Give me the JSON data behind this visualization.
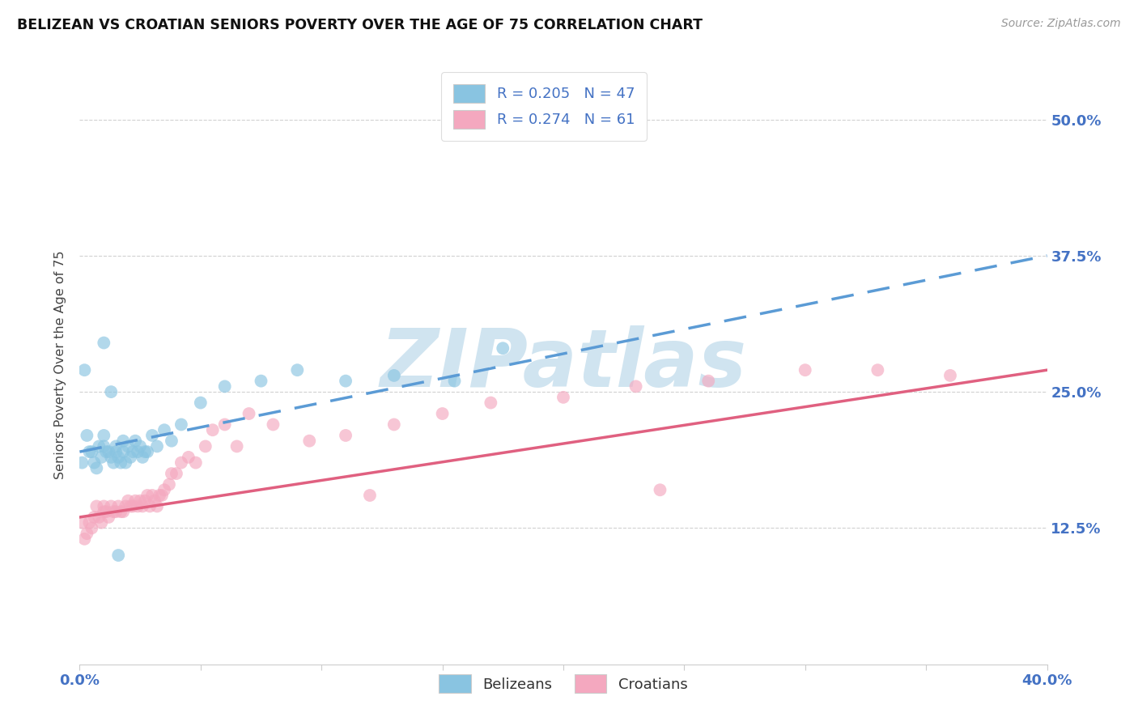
{
  "title": "BELIZEAN VS CROATIAN SENIORS POVERTY OVER THE AGE OF 75 CORRELATION CHART",
  "source": "Source: ZipAtlas.com",
  "ylabel": "Seniors Poverty Over the Age of 75",
  "legend_belizeans": "Belizeans",
  "legend_croatians": "Croatians",
  "R_belizean": 0.205,
  "N_belizean": 47,
  "R_croatian": 0.274,
  "N_croatian": 61,
  "blue_scatter_color": "#89c4e1",
  "pink_scatter_color": "#f4a8bf",
  "blue_line_color": "#5b9bd5",
  "pink_line_color": "#e06080",
  "watermark_color": "#d0e4f0",
  "title_color": "#111111",
  "axis_label_color": "#4472c4",
  "legend_text_color": "#4472c4",
  "background_color": "#ffffff",
  "grid_color": "#cccccc",
  "xmin": 0.0,
  "xmax": 0.4,
  "ymin": 0.0,
  "ymax": 0.55,
  "ytick_vals": [
    0.125,
    0.25,
    0.375,
    0.5
  ],
  "xtick_vals": [
    0.0,
    0.05,
    0.1,
    0.15,
    0.2,
    0.25,
    0.3,
    0.35,
    0.4
  ],
  "belizean_x": [
    0.001,
    0.002,
    0.003,
    0.004,
    0.005,
    0.006,
    0.007,
    0.008,
    0.009,
    0.01,
    0.01,
    0.011,
    0.012,
    0.013,
    0.014,
    0.015,
    0.015,
    0.016,
    0.017,
    0.018,
    0.018,
    0.019,
    0.02,
    0.021,
    0.022,
    0.023,
    0.024,
    0.025,
    0.026,
    0.027,
    0.028,
    0.03,
    0.032,
    0.035,
    0.038,
    0.042,
    0.05,
    0.06,
    0.075,
    0.09,
    0.11,
    0.13,
    0.155,
    0.175,
    0.01,
    0.013,
    0.016
  ],
  "belizean_y": [
    0.185,
    0.27,
    0.21,
    0.195,
    0.195,
    0.185,
    0.18,
    0.2,
    0.19,
    0.21,
    0.2,
    0.195,
    0.195,
    0.19,
    0.185,
    0.195,
    0.2,
    0.19,
    0.185,
    0.195,
    0.205,
    0.185,
    0.2,
    0.19,
    0.195,
    0.205,
    0.195,
    0.2,
    0.19,
    0.195,
    0.195,
    0.21,
    0.2,
    0.215,
    0.205,
    0.22,
    0.24,
    0.255,
    0.26,
    0.27,
    0.26,
    0.265,
    0.26,
    0.29,
    0.295,
    0.25,
    0.1
  ],
  "croatian_x": [
    0.001,
    0.002,
    0.003,
    0.004,
    0.005,
    0.006,
    0.007,
    0.008,
    0.009,
    0.01,
    0.01,
    0.011,
    0.012,
    0.013,
    0.014,
    0.015,
    0.016,
    0.017,
    0.018,
    0.019,
    0.02,
    0.021,
    0.022,
    0.023,
    0.024,
    0.025,
    0.026,
    0.027,
    0.028,
    0.029,
    0.03,
    0.031,
    0.032,
    0.033,
    0.034,
    0.035,
    0.037,
    0.038,
    0.04,
    0.042,
    0.045,
    0.048,
    0.052,
    0.055,
    0.06,
    0.065,
    0.07,
    0.08,
    0.095,
    0.11,
    0.13,
    0.15,
    0.17,
    0.2,
    0.23,
    0.26,
    0.3,
    0.33,
    0.36,
    0.12,
    0.24
  ],
  "croatian_y": [
    0.13,
    0.115,
    0.12,
    0.13,
    0.125,
    0.135,
    0.145,
    0.135,
    0.13,
    0.14,
    0.145,
    0.14,
    0.135,
    0.145,
    0.14,
    0.14,
    0.145,
    0.14,
    0.14,
    0.145,
    0.15,
    0.145,
    0.145,
    0.15,
    0.145,
    0.15,
    0.145,
    0.15,
    0.155,
    0.145,
    0.155,
    0.15,
    0.145,
    0.155,
    0.155,
    0.16,
    0.165,
    0.175,
    0.175,
    0.185,
    0.19,
    0.185,
    0.2,
    0.215,
    0.22,
    0.2,
    0.23,
    0.22,
    0.205,
    0.21,
    0.22,
    0.23,
    0.24,
    0.245,
    0.255,
    0.26,
    0.27,
    0.27,
    0.265,
    0.155,
    0.16
  ]
}
